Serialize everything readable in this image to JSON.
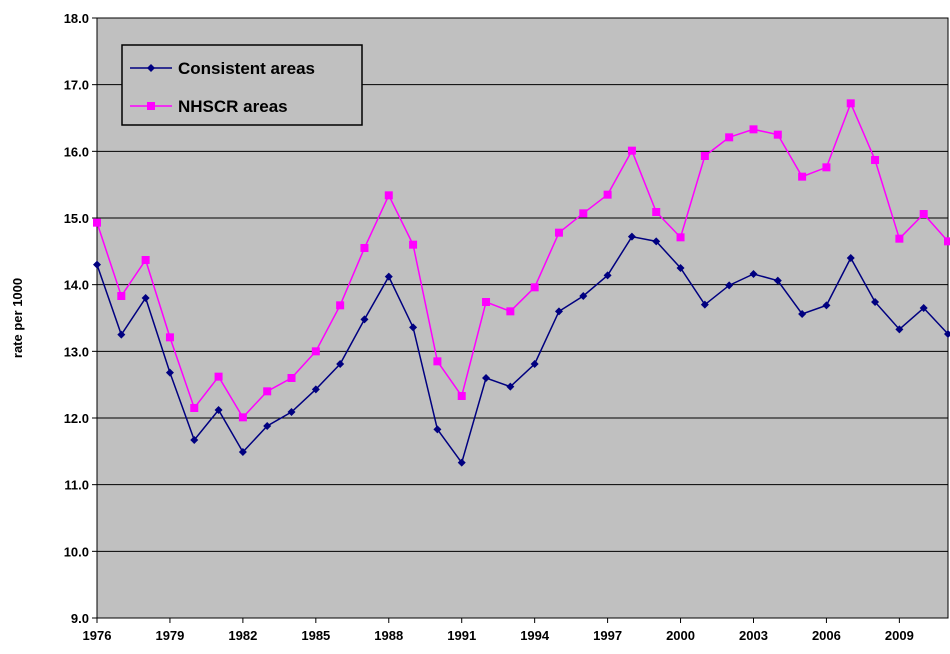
{
  "chart_data": {
    "type": "line",
    "y_label": "rate per 1000",
    "x": [
      1976,
      1977,
      1978,
      1979,
      1980,
      1981,
      1982,
      1983,
      1984,
      1985,
      1986,
      1987,
      1988,
      1989,
      1990,
      1991,
      1992,
      1993,
      1994,
      1995,
      1996,
      1997,
      1998,
      1999,
      2000,
      2001,
      2002,
      2003,
      2004,
      2005,
      2006,
      2007,
      2008,
      2009,
      2010,
      2011
    ],
    "series": [
      {
        "name": "Consistent areas",
        "color": "#000080",
        "marker": "diamond",
        "values": [
          14.3,
          13.25,
          13.8,
          12.68,
          11.67,
          12.12,
          11.49,
          11.88,
          12.09,
          12.43,
          12.81,
          13.48,
          14.12,
          13.36,
          11.83,
          11.33,
          12.6,
          12.47,
          12.81,
          13.6,
          13.83,
          14.14,
          14.72,
          14.65,
          14.25,
          13.7,
          13.99,
          14.16,
          14.06,
          13.56,
          13.69,
          14.4,
          13.74,
          13.33,
          13.65,
          13.26
        ]
      },
      {
        "name": "NHSCR areas",
        "color": "#ff00ff",
        "marker": "square",
        "values": [
          14.93,
          13.83,
          14.37,
          13.21,
          12.15,
          12.62,
          12.01,
          12.4,
          12.6,
          13.0,
          13.69,
          14.55,
          15.34,
          14.6,
          12.85,
          12.33,
          13.74,
          13.6,
          13.96,
          14.78,
          15.07,
          15.35,
          16.01,
          15.09,
          14.71,
          15.93,
          16.21,
          16.33,
          16.25,
          15.62,
          15.76,
          16.72,
          15.87,
          14.69,
          15.06,
          14.65
        ]
      }
    ],
    "xlim": [
      1976,
      2011
    ],
    "xticks": [
      1976,
      1979,
      1982,
      1985,
      1988,
      1991,
      1994,
      1997,
      2000,
      2003,
      2006,
      2009
    ],
    "ylim": [
      9,
      18
    ],
    "yticks": [
      {
        "value": 9,
        "label": "9.0"
      },
      {
        "value": 10,
        "label": "10.0"
      },
      {
        "value": 11,
        "label": "11.0"
      },
      {
        "value": 12,
        "label": "12.0"
      },
      {
        "value": 13,
        "label": "13.0"
      },
      {
        "value": 14,
        "label": "14.0"
      },
      {
        "value": 15,
        "label": "15.0"
      },
      {
        "value": 16,
        "label": "16.0"
      },
      {
        "value": 17,
        "label": "17.0"
      },
      {
        "value": 18,
        "label": "18.0"
      }
    ],
    "grid": true,
    "legend": "top-left",
    "background": "#c0c0c0"
  }
}
